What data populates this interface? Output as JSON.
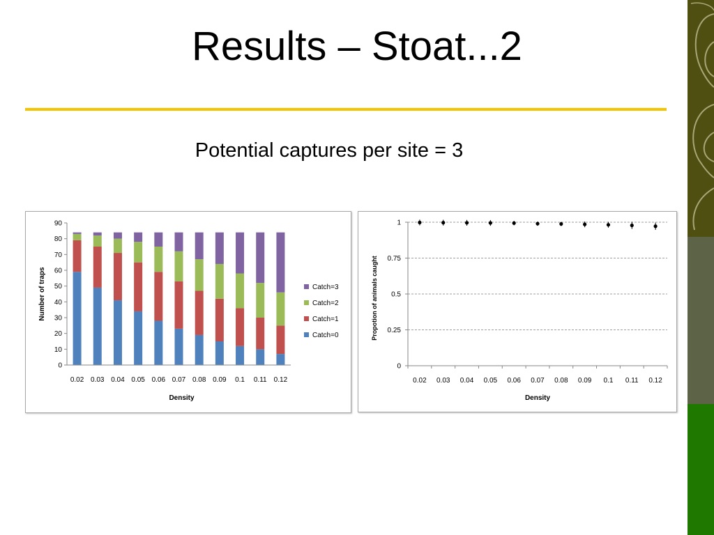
{
  "slide": {
    "title": "Results – Stoat...2",
    "subtitle": "Potential captures per site =  3"
  },
  "colors": {
    "accent_rule": "#f5c400",
    "catch0": "#4f81bd",
    "catch1": "#c0504d",
    "catch2": "#9bbb59",
    "catch3": "#8064a2",
    "side_top": "#4f4f12",
    "side_mid": "#5d6347",
    "side_bottom": "#1f7800"
  },
  "chart_data": [
    {
      "type": "bar",
      "stacked": true,
      "categories": [
        "0.02",
        "0.03",
        "0.04",
        "0.05",
        "0.06",
        "0.07",
        "0.08",
        "0.09",
        "0.1",
        "0.11",
        "0.12"
      ],
      "series": [
        {
          "name": "Catch=0",
          "values": [
            59,
            49,
            41,
            34,
            28,
            23,
            19,
            15,
            12,
            10,
            7
          ]
        },
        {
          "name": "Catch=1",
          "values": [
            20,
            26,
            30,
            31,
            31,
            30,
            28,
            27,
            24,
            20,
            18
          ]
        },
        {
          "name": "Catch=2",
          "values": [
            4,
            7,
            9,
            13,
            16,
            19,
            20,
            22,
            22,
            22,
            21
          ]
        },
        {
          "name": "Catch=3",
          "values": [
            1,
            2,
            4,
            6,
            9,
            12,
            17,
            20,
            26,
            32,
            38
          ]
        }
      ],
      "xlabel": "Density",
      "ylabel": "Number of traps",
      "ylim": [
        0,
        90
      ],
      "yticks": [
        0,
        10,
        20,
        30,
        40,
        50,
        60,
        70,
        80,
        90
      ],
      "legend": "right",
      "grid": false
    },
    {
      "type": "scatter",
      "error_bars": true,
      "x": [
        "0.02",
        "0.03",
        "0.04",
        "0.05",
        "0.06",
        "0.07",
        "0.08",
        "0.09",
        "0.1",
        "0.11",
        "0.12"
      ],
      "y": [
        0.998,
        0.997,
        0.996,
        0.995,
        0.994,
        0.99,
        0.988,
        0.985,
        0.982,
        0.978,
        0.972
      ],
      "y_err": [
        0.02,
        0.02,
        0.02,
        0.02,
        0.015,
        0.015,
        0.015,
        0.02,
        0.02,
        0.025,
        0.025
      ],
      "xlabel": "Density",
      "ylabel": "Propotion of animals  caught",
      "ylim": [
        0,
        1
      ],
      "yticks": [
        "0",
        "0.25",
        "0.5",
        "0.75",
        "1"
      ],
      "grid": "horizontal-dashed"
    }
  ]
}
